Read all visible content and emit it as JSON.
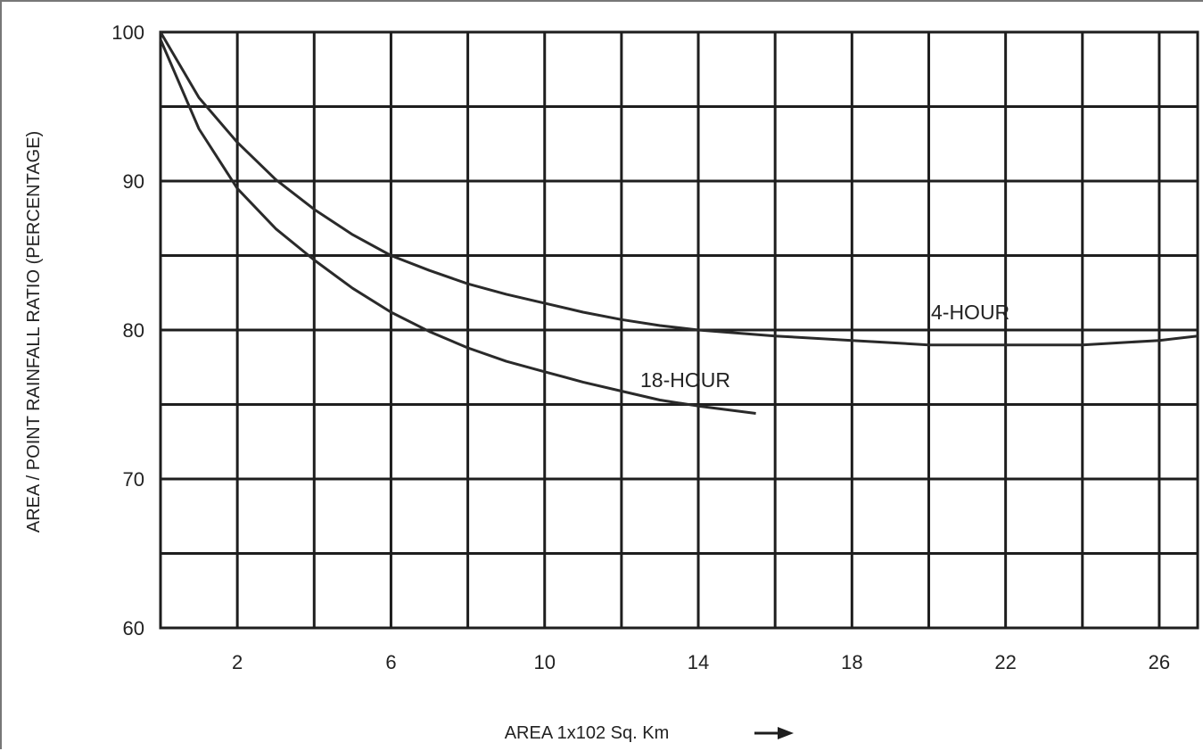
{
  "chart_data": {
    "type": "line",
    "title": "",
    "xlabel": "AREA 1x102 Sq. Km",
    "ylabel": "AREA / POINT RAINFALL RATIO (PERCENTAGE)",
    "xlim": [
      0,
      27
    ],
    "ylim": [
      60,
      100
    ],
    "x_ticks": [
      2,
      6,
      10,
      14,
      18,
      22,
      26
    ],
    "y_ticks": [
      60,
      70,
      80,
      90,
      100
    ],
    "grid": true,
    "legend": "none",
    "x_axis_arrow": "right-arrow-icon",
    "series": [
      {
        "name": "4-HOUR",
        "x": [
          0,
          1,
          2,
          3,
          4,
          5,
          6,
          7,
          8,
          9,
          10,
          11,
          12,
          13,
          14,
          16,
          18,
          20,
          22,
          24,
          26,
          27
        ],
        "y": [
          100,
          95.6,
          92.6,
          90.1,
          88.1,
          86.4,
          85.0,
          84.0,
          83.1,
          82.4,
          81.8,
          81.2,
          80.7,
          80.3,
          80.0,
          79.6,
          79.3,
          79.0,
          79.0,
          79.0,
          79.3,
          79.6
        ]
      },
      {
        "name": "18-HOUR",
        "x": [
          0,
          1,
          2,
          3,
          4,
          5,
          6,
          7,
          8,
          9,
          10,
          11,
          12,
          13,
          14,
          15.5
        ],
        "y": [
          99.5,
          93.5,
          89.5,
          86.8,
          84.7,
          82.8,
          81.2,
          79.9,
          78.8,
          77.9,
          77.2,
          76.5,
          75.9,
          75.3,
          74.9,
          74.4
        ]
      }
    ]
  }
}
